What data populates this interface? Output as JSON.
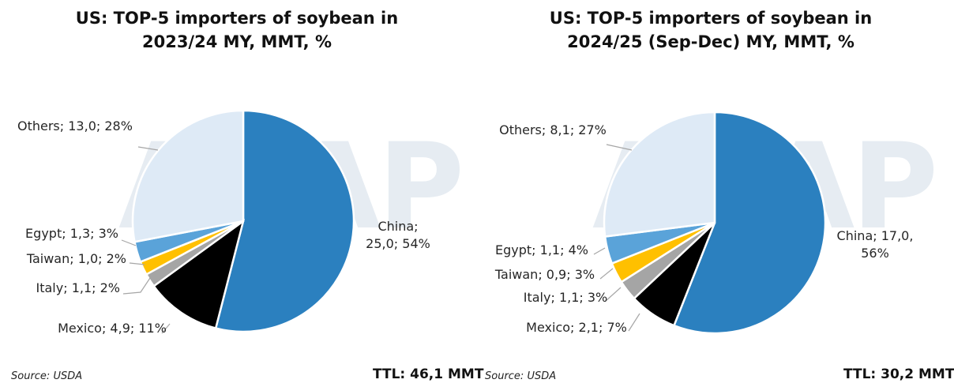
{
  "watermark": "ASAP",
  "chart_data": [
    {
      "type": "pie",
      "title": [
        "US: TOP-5 importers of soybean in",
        "2023/24 MY, MMT, %"
      ],
      "source": "Source: USDA",
      "total_label": "TTL: 46,1 MMT",
      "slices": [
        {
          "name": "China",
          "value": 25.0,
          "label": "25,0; 54%",
          "percent": 54,
          "color": "#2b80bf"
        },
        {
          "name": "Mexico",
          "value": 4.9,
          "label": "4,9; 11%",
          "percent": 11,
          "color": "#000000"
        },
        {
          "name": "Italy",
          "value": 1.1,
          "label": "1,1; 2%",
          "percent": 2,
          "color": "#a5a5a5"
        },
        {
          "name": "Taiwan",
          "value": 1.0,
          "label": "1,0; 2%",
          "percent": 2,
          "color": "#ffc000"
        },
        {
          "name": "Egypt",
          "value": 1.3,
          "label": "1,3; 3%",
          "percent": 3,
          "color": "#5aa3d9"
        },
        {
          "name": "Others",
          "value": 13.0,
          "label": "13,0; 28%",
          "percent": 28,
          "color": "#deeaf6"
        }
      ]
    },
    {
      "type": "pie",
      "title": [
        "US: TOP-5 importers of soybean in",
        "2024/25 (Sep-Dec) MY, MMT, %"
      ],
      "source": "Source: USDA",
      "total_label": "TTL: 30,2 MMT",
      "slices": [
        {
          "name": "China",
          "value": 17.0,
          "label": "17,0; 56%",
          "percent": 56,
          "color": "#2b80bf"
        },
        {
          "name": "Mexico",
          "value": 2.1,
          "label": "2,1; 7%",
          "percent": 7,
          "color": "#000000"
        },
        {
          "name": "Italy",
          "value": 1.1,
          "label": "1,1; 3%",
          "percent": 3,
          "color": "#a5a5a5"
        },
        {
          "name": "Taiwan",
          "value": 0.9,
          "label": "0,9; 3%",
          "percent": 3,
          "color": "#ffc000"
        },
        {
          "name": "Egypt",
          "value": 1.1,
          "label": "1,1; 4%",
          "percent": 4,
          "color": "#5aa3d9"
        },
        {
          "name": "Others",
          "value": 8.1,
          "label": "8,1; 27%",
          "percent": 27,
          "color": "#deeaf6"
        }
      ]
    }
  ]
}
